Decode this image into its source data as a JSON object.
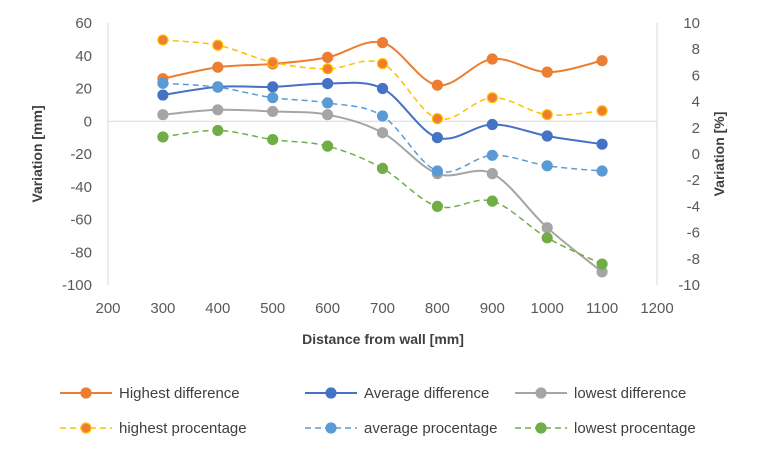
{
  "chart_data": {
    "type": "line",
    "title": "",
    "xlabel": "Distance from wall [mm]",
    "ylabel": "Variation [mm]",
    "y2label": "Variation [%]",
    "xlim": [
      200,
      1200
    ],
    "xticks": [
      "200",
      "300",
      "400",
      "500",
      "600",
      "700",
      "800",
      "900",
      "1000",
      "1100",
      "1200"
    ],
    "ylim": [
      -100,
      60
    ],
    "yticks": [
      "60",
      "40",
      "20",
      "0",
      "-20",
      "-40",
      "-60",
      "-80",
      "-100"
    ],
    "y2lim": [
      -10,
      10
    ],
    "y2ticks": [
      "10",
      "8",
      "6",
      "4",
      "2",
      "0",
      "-2",
      "-4",
      "-6",
      "-8",
      "-10"
    ],
    "grid": false,
    "legend_position": "bottom",
    "x": [
      300,
      400,
      500,
      600,
      700,
      800,
      900,
      1000,
      1100
    ],
    "series": [
      {
        "name": "Highest difference",
        "axis": "left",
        "style": "solid",
        "color": "#ED7D31",
        "fill": "#ED7D31",
        "values": [
          26,
          33,
          35,
          39,
          48,
          22,
          38,
          30,
          37
        ]
      },
      {
        "name": "Average difference",
        "axis": "left",
        "style": "solid",
        "color": "#4472C4",
        "fill": "#4472C4",
        "values": [
          16,
          21,
          21,
          23,
          20,
          -10,
          -2,
          -9,
          -14
        ]
      },
      {
        "name": "lowest difference",
        "axis": "left",
        "style": "solid",
        "color": "#A5A5A5",
        "fill": "#A5A5A5",
        "values": [
          4,
          7,
          6,
          4,
          -7,
          -32,
          -32,
          -65,
          -92
        ]
      },
      {
        "name": "highest procentage",
        "axis": "right",
        "style": "dashed",
        "color": "#FFC000",
        "fill": "#ED7D31",
        "values": [
          8.7,
          8.3,
          7.0,
          6.5,
          6.9,
          2.7,
          4.3,
          3.0,
          3.3
        ]
      },
      {
        "name": "average procentage",
        "axis": "right",
        "style": "dashed",
        "color": "#5B9BD5",
        "fill": "#5B9BD5",
        "values": [
          5.4,
          5.1,
          4.3,
          3.9,
          2.9,
          -1.3,
          -0.1,
          -0.9,
          -1.3
        ]
      },
      {
        "name": "lowest procentage",
        "axis": "right",
        "style": "dashed",
        "color": "#70AD47",
        "fill": "#70AD47",
        "values": [
          1.3,
          1.8,
          1.1,
          0.6,
          -1.1,
          -4.0,
          -3.6,
          -6.4,
          -8.4
        ]
      }
    ]
  }
}
